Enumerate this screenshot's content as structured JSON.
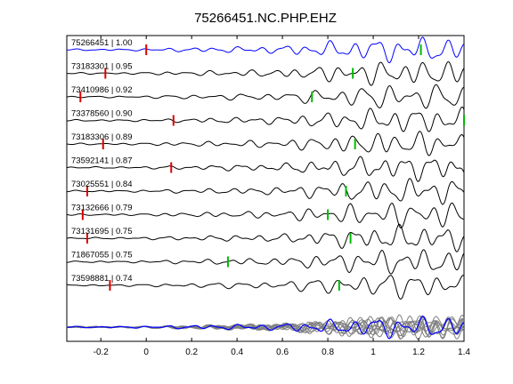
{
  "chart_data": {
    "type": "line",
    "title": "75266451.NC.PHP.EHZ",
    "xlabel": "",
    "ylabel": "",
    "xlim": [
      -0.35,
      1.4
    ],
    "xticks": [
      "-0.2",
      "0",
      "0.2",
      "0.4",
      "0.6",
      "0.8",
      "1",
      "1.2",
      "1.4"
    ],
    "xtick_values": [
      -0.2,
      0,
      0.2,
      0.4,
      0.6,
      0.8,
      1.0,
      1.2,
      1.4
    ],
    "grid": false,
    "colors": {
      "reference": "#0000ff",
      "trace": "#000000",
      "stack": "#808080",
      "p_pick": "#dd0000",
      "s_pick": "#00bb00"
    },
    "series": [
      {
        "label": "75266451 | 1.00",
        "p_pick": 0.0,
        "s_pick": 1.21
      },
      {
        "label": "73183301 | 0.95",
        "p_pick": -0.18,
        "s_pick": 0.91
      },
      {
        "label": "73410986 | 0.92",
        "p_pick": -0.29,
        "s_pick": 0.73
      },
      {
        "label": "73378560 | 0.90",
        "p_pick": 0.12,
        "s_pick": 1.4
      },
      {
        "label": "73183306 | 0.89",
        "p_pick": -0.19,
        "s_pick": 0.92
      },
      {
        "label": "73592141 | 0.87",
        "p_pick": 0.11,
        "s_pick": null
      },
      {
        "label": "73025551 | 0.84",
        "p_pick": -0.26,
        "s_pick": 0.88
      },
      {
        "label": "73132666 | 0.79",
        "p_pick": -0.28,
        "s_pick": 0.8
      },
      {
        "label": "73131695 | 0.75",
        "p_pick": -0.26,
        "s_pick": 0.9
      },
      {
        "label": "71867055 | 0.75",
        "p_pick": null,
        "s_pick": 0.36
      },
      {
        "label": "73598881 | 0.74",
        "p_pick": -0.16,
        "s_pick": 0.85
      }
    ]
  }
}
